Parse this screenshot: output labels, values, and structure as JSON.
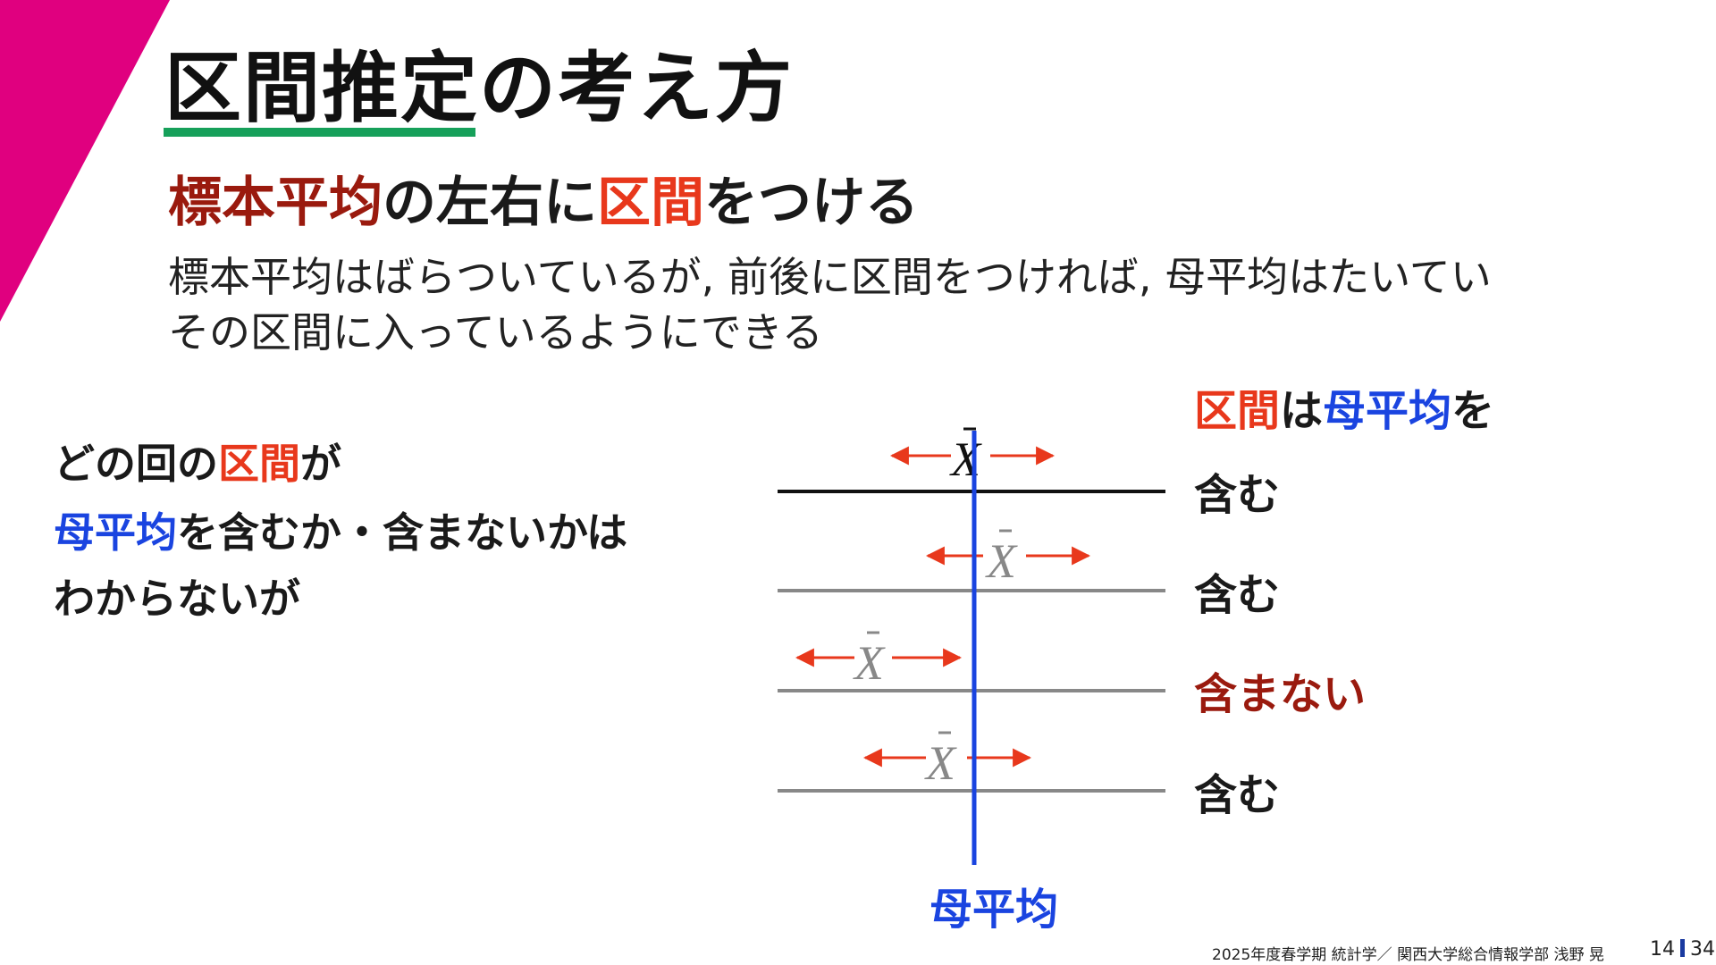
{
  "slide": {
    "title": "区間推定の考え方",
    "subtitle": {
      "part1": "標本平均",
      "part2": "の左右に",
      "part3": "区間",
      "part4": "をつける"
    },
    "body_line1": "標本平均はばらついているが, 前後に区間をつければ, 母平均はたいてい",
    "body_line2": "その区間に入っているようにできる",
    "left_text": {
      "line1_a": "どの回の",
      "line1_b": "区間",
      "line1_c": "が",
      "line2_a": "母平均",
      "line2_b": "を含むか・含まないかは",
      "line3": "わからないが"
    },
    "diagram": {
      "header_a": "区間",
      "header_b": "は",
      "header_c": "母平均",
      "header_d": "を",
      "mean_label": "母平均",
      "rows": [
        {
          "label": "含む",
          "contains": true
        },
        {
          "label": "含む",
          "contains": true
        },
        {
          "label": "含まない",
          "contains": false
        },
        {
          "label": "含む",
          "contains": true
        }
      ],
      "xbar_symbol": "X"
    },
    "colors": {
      "accent_magenta": "#e0007f",
      "underline_green": "#16a05a",
      "red": "#e8381c",
      "dark_red": "#9a1a0e",
      "blue": "#1a44e0"
    },
    "footer": {
      "text": "2025年度春学期 統計学／ 関西大学総合情報学部 浅野 晃",
      "page": "14",
      "total": "34"
    }
  }
}
